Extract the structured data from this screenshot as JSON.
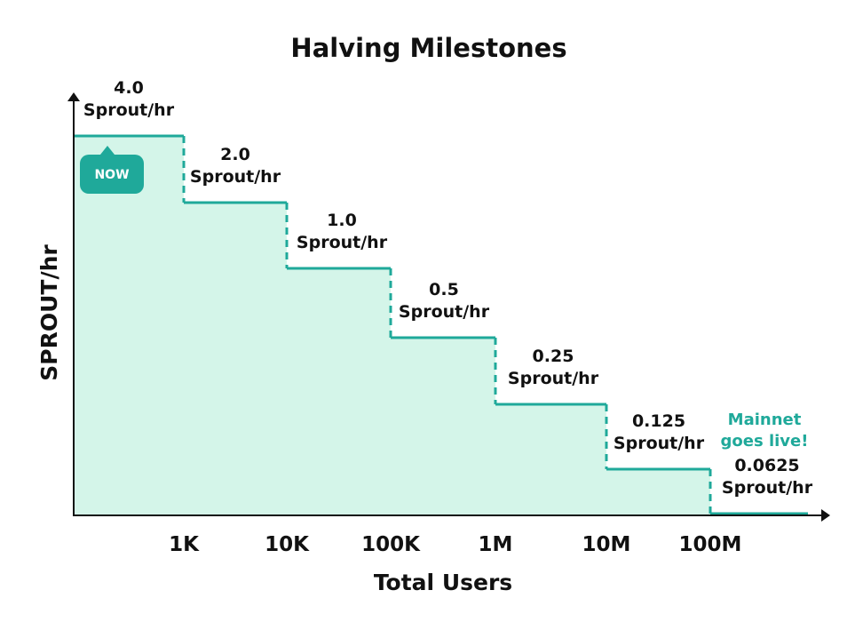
{
  "chart_data": {
    "type": "line",
    "title": "Halving Milestones",
    "xlabel": "Total Users",
    "ylabel": "SPROUT/hr",
    "x_tick_labels": [
      "1K",
      "10K",
      "100K",
      "1M",
      "10M",
      "100M"
    ],
    "x_scale": "log",
    "step": true,
    "steps": [
      {
        "value": 4.0,
        "label_value": "4.0",
        "label_unit": "Sprout/hr"
      },
      {
        "value": 2.0,
        "label_value": "2.0",
        "label_unit": "Sprout/hr"
      },
      {
        "value": 1.0,
        "label_value": "1.0",
        "label_unit": "Sprout/hr"
      },
      {
        "value": 0.5,
        "label_value": "0.5",
        "label_unit": "Sprout/hr"
      },
      {
        "value": 0.25,
        "label_value": "0.25",
        "label_unit": "Sprout/hr"
      },
      {
        "value": 0.125,
        "label_value": "0.125",
        "label_unit": "Sprout/hr"
      },
      {
        "value": 0.0625,
        "label_value": "0.0625",
        "label_unit": "Sprout/hr"
      }
    ],
    "ylim": [
      0,
      4.0
    ],
    "grid": false,
    "annotations": {
      "now_badge": "NOW",
      "mainnet_line1": "Mainnet",
      "mainnet_line2": "goes live!"
    },
    "colors": {
      "line": "#1fa99a",
      "fill": "#d4f5e9",
      "badge": "#1fa99a",
      "annotation_text": "#1fa99a",
      "axis": "#111111"
    }
  }
}
